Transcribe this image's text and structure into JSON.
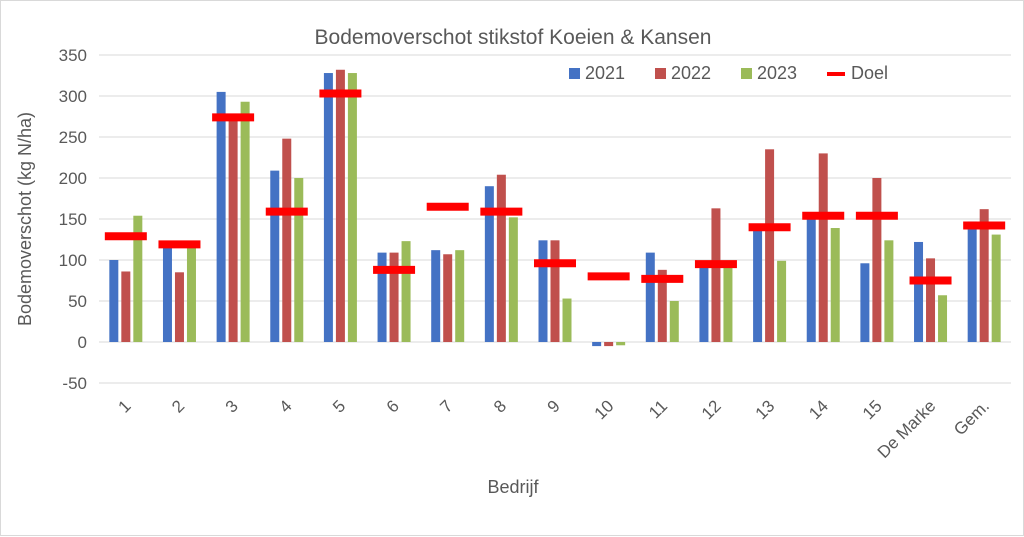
{
  "chart_data": {
    "type": "bar",
    "title": "Bodemoverschot  stikstof Koeien & Kansen",
    "xlabel": "Bedrijf",
    "ylabel": "Bodemoverschot (kg N/ha)",
    "ylim": [
      -50,
      350
    ],
    "yticks": [
      -50,
      0,
      50,
      100,
      150,
      200,
      250,
      300,
      350
    ],
    "grid": true,
    "legend_position": "top-right",
    "categories": [
      "1",
      "2",
      "3",
      "4",
      "5",
      "6",
      "7",
      "8",
      "9",
      "10",
      "11",
      "12",
      "13",
      "14",
      "15",
      "De Marke",
      "Gem."
    ],
    "series": [
      {
        "name": "2021",
        "color": "#4472c4",
        "values": [
          100,
          117,
          305,
          209,
          328,
          109,
          112,
          190,
          124,
          -5,
          109,
          92,
          140,
          150,
          96,
          122,
          147
        ]
      },
      {
        "name": "2022",
        "color": "#c0504d",
        "values": [
          86,
          85,
          276,
          248,
          332,
          109,
          107,
          204,
          124,
          -5,
          88,
          163,
          235,
          230,
          200,
          102,
          162
        ]
      },
      {
        "name": "2023",
        "color": "#9bbb59",
        "values": [
          154,
          121,
          293,
          200,
          328,
          123,
          112,
          152,
          53,
          -4,
          50,
          95,
          99,
          139,
          124,
          57,
          131
        ]
      }
    ],
    "target": {
      "name": "Doel",
      "color": "#ff0000",
      "values": [
        129,
        119,
        274,
        159,
        303,
        88,
        165,
        159,
        96,
        80,
        77,
        95,
        140,
        154,
        154,
        75,
        142
      ]
    }
  }
}
